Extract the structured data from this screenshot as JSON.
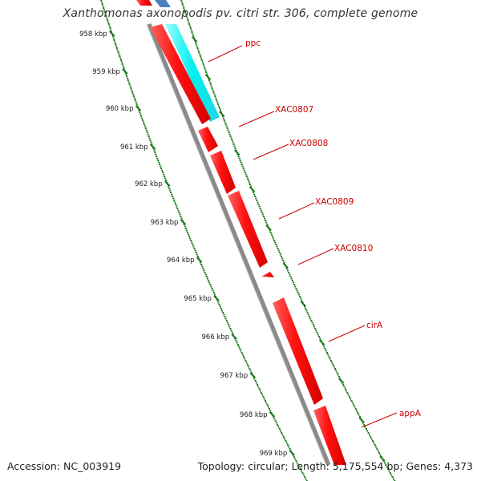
{
  "title": "Xanthomonas axonopodis pv. citri str. 306, complete genome",
  "accession": "Accession: NC_003919",
  "summary": "Topology: circular; Length: 5,175,554 bp; Genes: 4,373",
  "ticks": [
    "958 kbp",
    "959 kbp",
    "960 kbp",
    "961 kbp",
    "962 kbp",
    "963 kbp",
    "964 kbp",
    "965 kbp",
    "966 kbp",
    "967 kbp",
    "968 kbp",
    "969 kbp"
  ],
  "genes": [
    {
      "name": "ppc",
      "strand": "minus",
      "color": "#ff1010"
    },
    {
      "name": "XAC0807",
      "strand": "minus",
      "color": "#ff1010"
    },
    {
      "name": "XAC0808",
      "strand": "minus",
      "color": "#ff1010"
    },
    {
      "name": "XAC0809",
      "strand": "minus",
      "color": "#ff1010"
    },
    {
      "name": "XAC0810",
      "strand": "minus",
      "color": "#ff1010"
    },
    {
      "name": "cirA",
      "strand": "minus",
      "color": "#ff1010"
    },
    {
      "name": "appA",
      "strand": "minus",
      "color": "#ff1010"
    }
  ],
  "colors": {
    "backbone": "#8a8a8a",
    "cds": "#ff1010",
    "feature_cyan": "#00ffff",
    "feature_blue": "#4a82c0",
    "tick": "#1a7a1a",
    "label_line": "#cc0000"
  }
}
